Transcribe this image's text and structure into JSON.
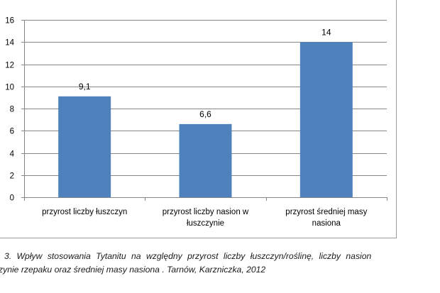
{
  "chart_data": {
    "type": "bar",
    "categories": [
      [
        "przyrost liczby łuszczyn"
      ],
      [
        "przyrost liczby nasion w",
        "łuszczynie"
      ],
      [
        "przyrost średniej masy",
        "nasiona"
      ]
    ],
    "values": [
      9.1,
      6.6,
      14
    ],
    "data_labels": [
      "9,1",
      "6,6",
      "14"
    ],
    "y_ticks": [
      "0",
      "2",
      "4",
      "6",
      "8",
      "10",
      "12",
      "14",
      "16"
    ],
    "ylim": [
      0,
      16
    ],
    "grid": true,
    "legend": "none",
    "colors": {
      "bar": "#4f81bd",
      "grid": "#868686",
      "axis": "#868686"
    }
  },
  "caption": {
    "line1": "3. Wpływ stosowania Tytanitu na względny przyrost liczby łuszczyn/roślinę, liczby nasion",
    "line2": "zynie rzepaku oraz średniej masy nasiona .  Tarnów, Karzniczka, 2012"
  }
}
